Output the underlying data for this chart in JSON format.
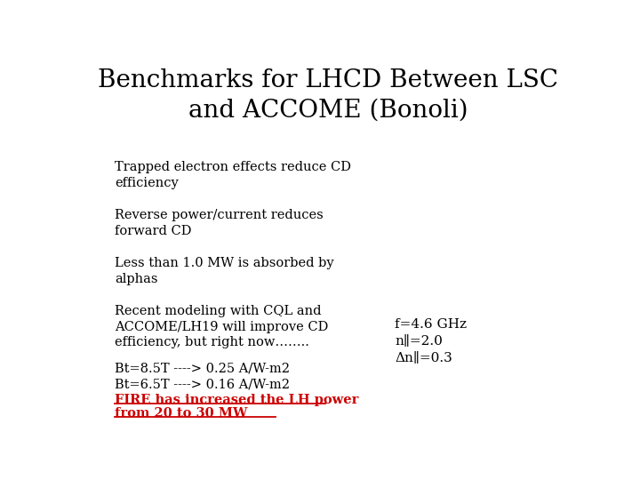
{
  "title_line1": "Benchmarks for LHCD Between LSC",
  "title_line2": "and ACCOME (Bonoli)",
  "title_fontsize": 20,
  "title_font": "serif",
  "background_color": "#ffffff",
  "text_color": "#000000",
  "bullet1": "Trapped electron effects reduce CD\nefficiency",
  "bullet2": "Reverse power/current reduces\nforward CD",
  "bullet3": "Less than 1.0 MW is absorbed by\nalphas",
  "bullet4": "Recent modeling with CQL and\nACCOME/LH19 will improve CD\nefficiency, but right now……..",
  "bt_lines": "Bt=8.5T ----> 0.25 A/W-m2\nBt=6.5T ----> 0.16 A/W-m2",
  "fire_line1": "FIRE has increased the LH power",
  "fire_line2": "from 20 to 30 MW",
  "fire_color": "#cc0000",
  "param_line1": "f=4.6 GHz",
  "param_line2": "n∥=2.0",
  "param_line3": "Δn∥=0.3",
  "body_fontsize": 10.5,
  "param_fontsize": 11
}
